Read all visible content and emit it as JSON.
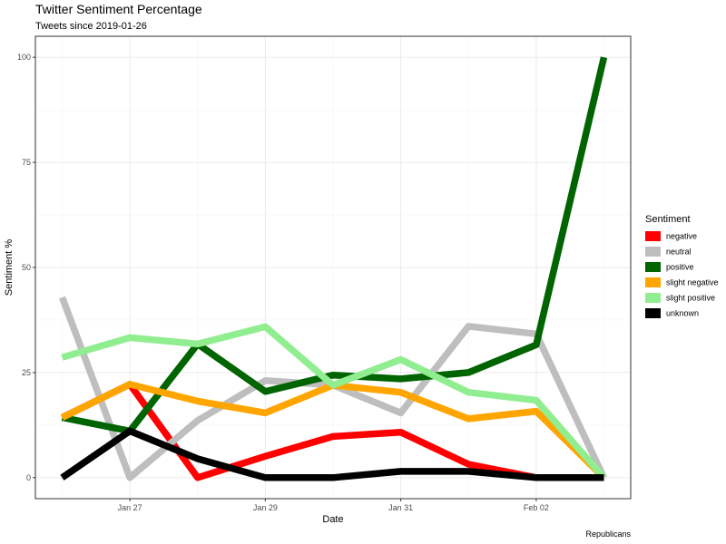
{
  "chart_data": {
    "type": "line",
    "title": "Twitter Sentiment Percentage",
    "subtitle": "Tweets since 2019-01-26",
    "caption": "Republicans",
    "xlabel": "Date",
    "ylabel": "Sentiment %",
    "x": [
      "2019-01-26",
      "2019-01-27",
      "2019-01-28",
      "2019-01-29",
      "2019-01-30",
      "2019-01-31",
      "2019-02-01",
      "2019-02-02",
      "2019-02-03"
    ],
    "x_ticks": [
      {
        "date": "2019-01-27",
        "label": "Jan 27"
      },
      {
        "date": "2019-01-29",
        "label": "Jan 29"
      },
      {
        "date": "2019-01-31",
        "label": "Jan 31"
      },
      {
        "date": "2019-02-02",
        "label": "Feb 02"
      }
    ],
    "y_ticks": [
      0,
      25,
      50,
      75,
      100
    ],
    "ylim": [
      -5,
      105
    ],
    "grid": true,
    "legend": {
      "title": "Sentiment",
      "position": "right"
    },
    "series": [
      {
        "name": "negative",
        "color": "#ff0000",
        "values": [
          14.3,
          22.2,
          0,
          5.1,
          9.8,
          10.8,
          3.2,
          0,
          0
        ]
      },
      {
        "name": "neutral",
        "color": "#bebebe",
        "values": [
          42.9,
          0,
          13.6,
          23.1,
          22.0,
          15.4,
          36.0,
          34.2,
          0
        ]
      },
      {
        "name": "positive",
        "color": "#006400",
        "values": [
          14.3,
          11.1,
          31.8,
          20.5,
          24.4,
          23.5,
          25.0,
          31.6,
          100
        ]
      },
      {
        "name": "slight negative",
        "color": "#ffa500",
        "values": [
          14.3,
          22.2,
          18.2,
          15.4,
          22.0,
          20.3,
          14.0,
          15.8,
          0
        ]
      },
      {
        "name": "slight positive",
        "color": "#90ee90",
        "values": [
          28.6,
          33.3,
          31.8,
          35.9,
          22.0,
          28.1,
          20.3,
          18.4,
          0
        ]
      },
      {
        "name": "unknown",
        "color": "#000000",
        "values": [
          0,
          11.1,
          4.5,
          0,
          0,
          1.5,
          1.5,
          0,
          0
        ]
      }
    ]
  }
}
